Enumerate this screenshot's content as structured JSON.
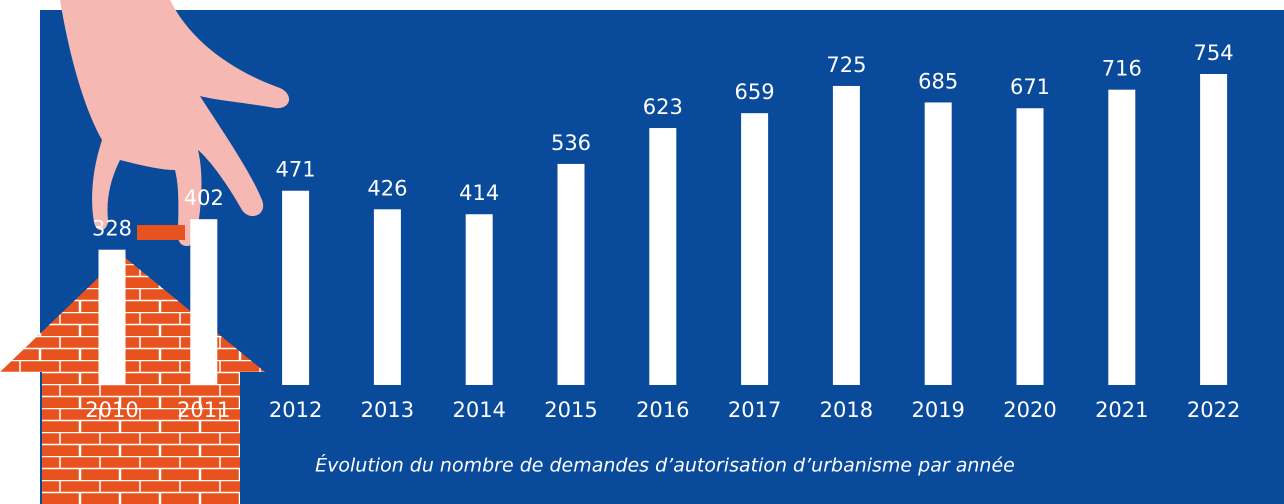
{
  "chart_data": {
    "type": "bar",
    "caption": "Évolution du nombre de demandes d’autorisation d’urbanisme par année",
    "categories": [
      "2010",
      "2011",
      "2012",
      "2013",
      "2014",
      "2015",
      "2016",
      "2017",
      "2018",
      "2019",
      "2020",
      "2021",
      "2022"
    ],
    "values": [
      328,
      402,
      471,
      426,
      414,
      536,
      623,
      659,
      725,
      685,
      671,
      716,
      754
    ],
    "color": "#ffffff",
    "background": "#0a4a9a"
  }
}
